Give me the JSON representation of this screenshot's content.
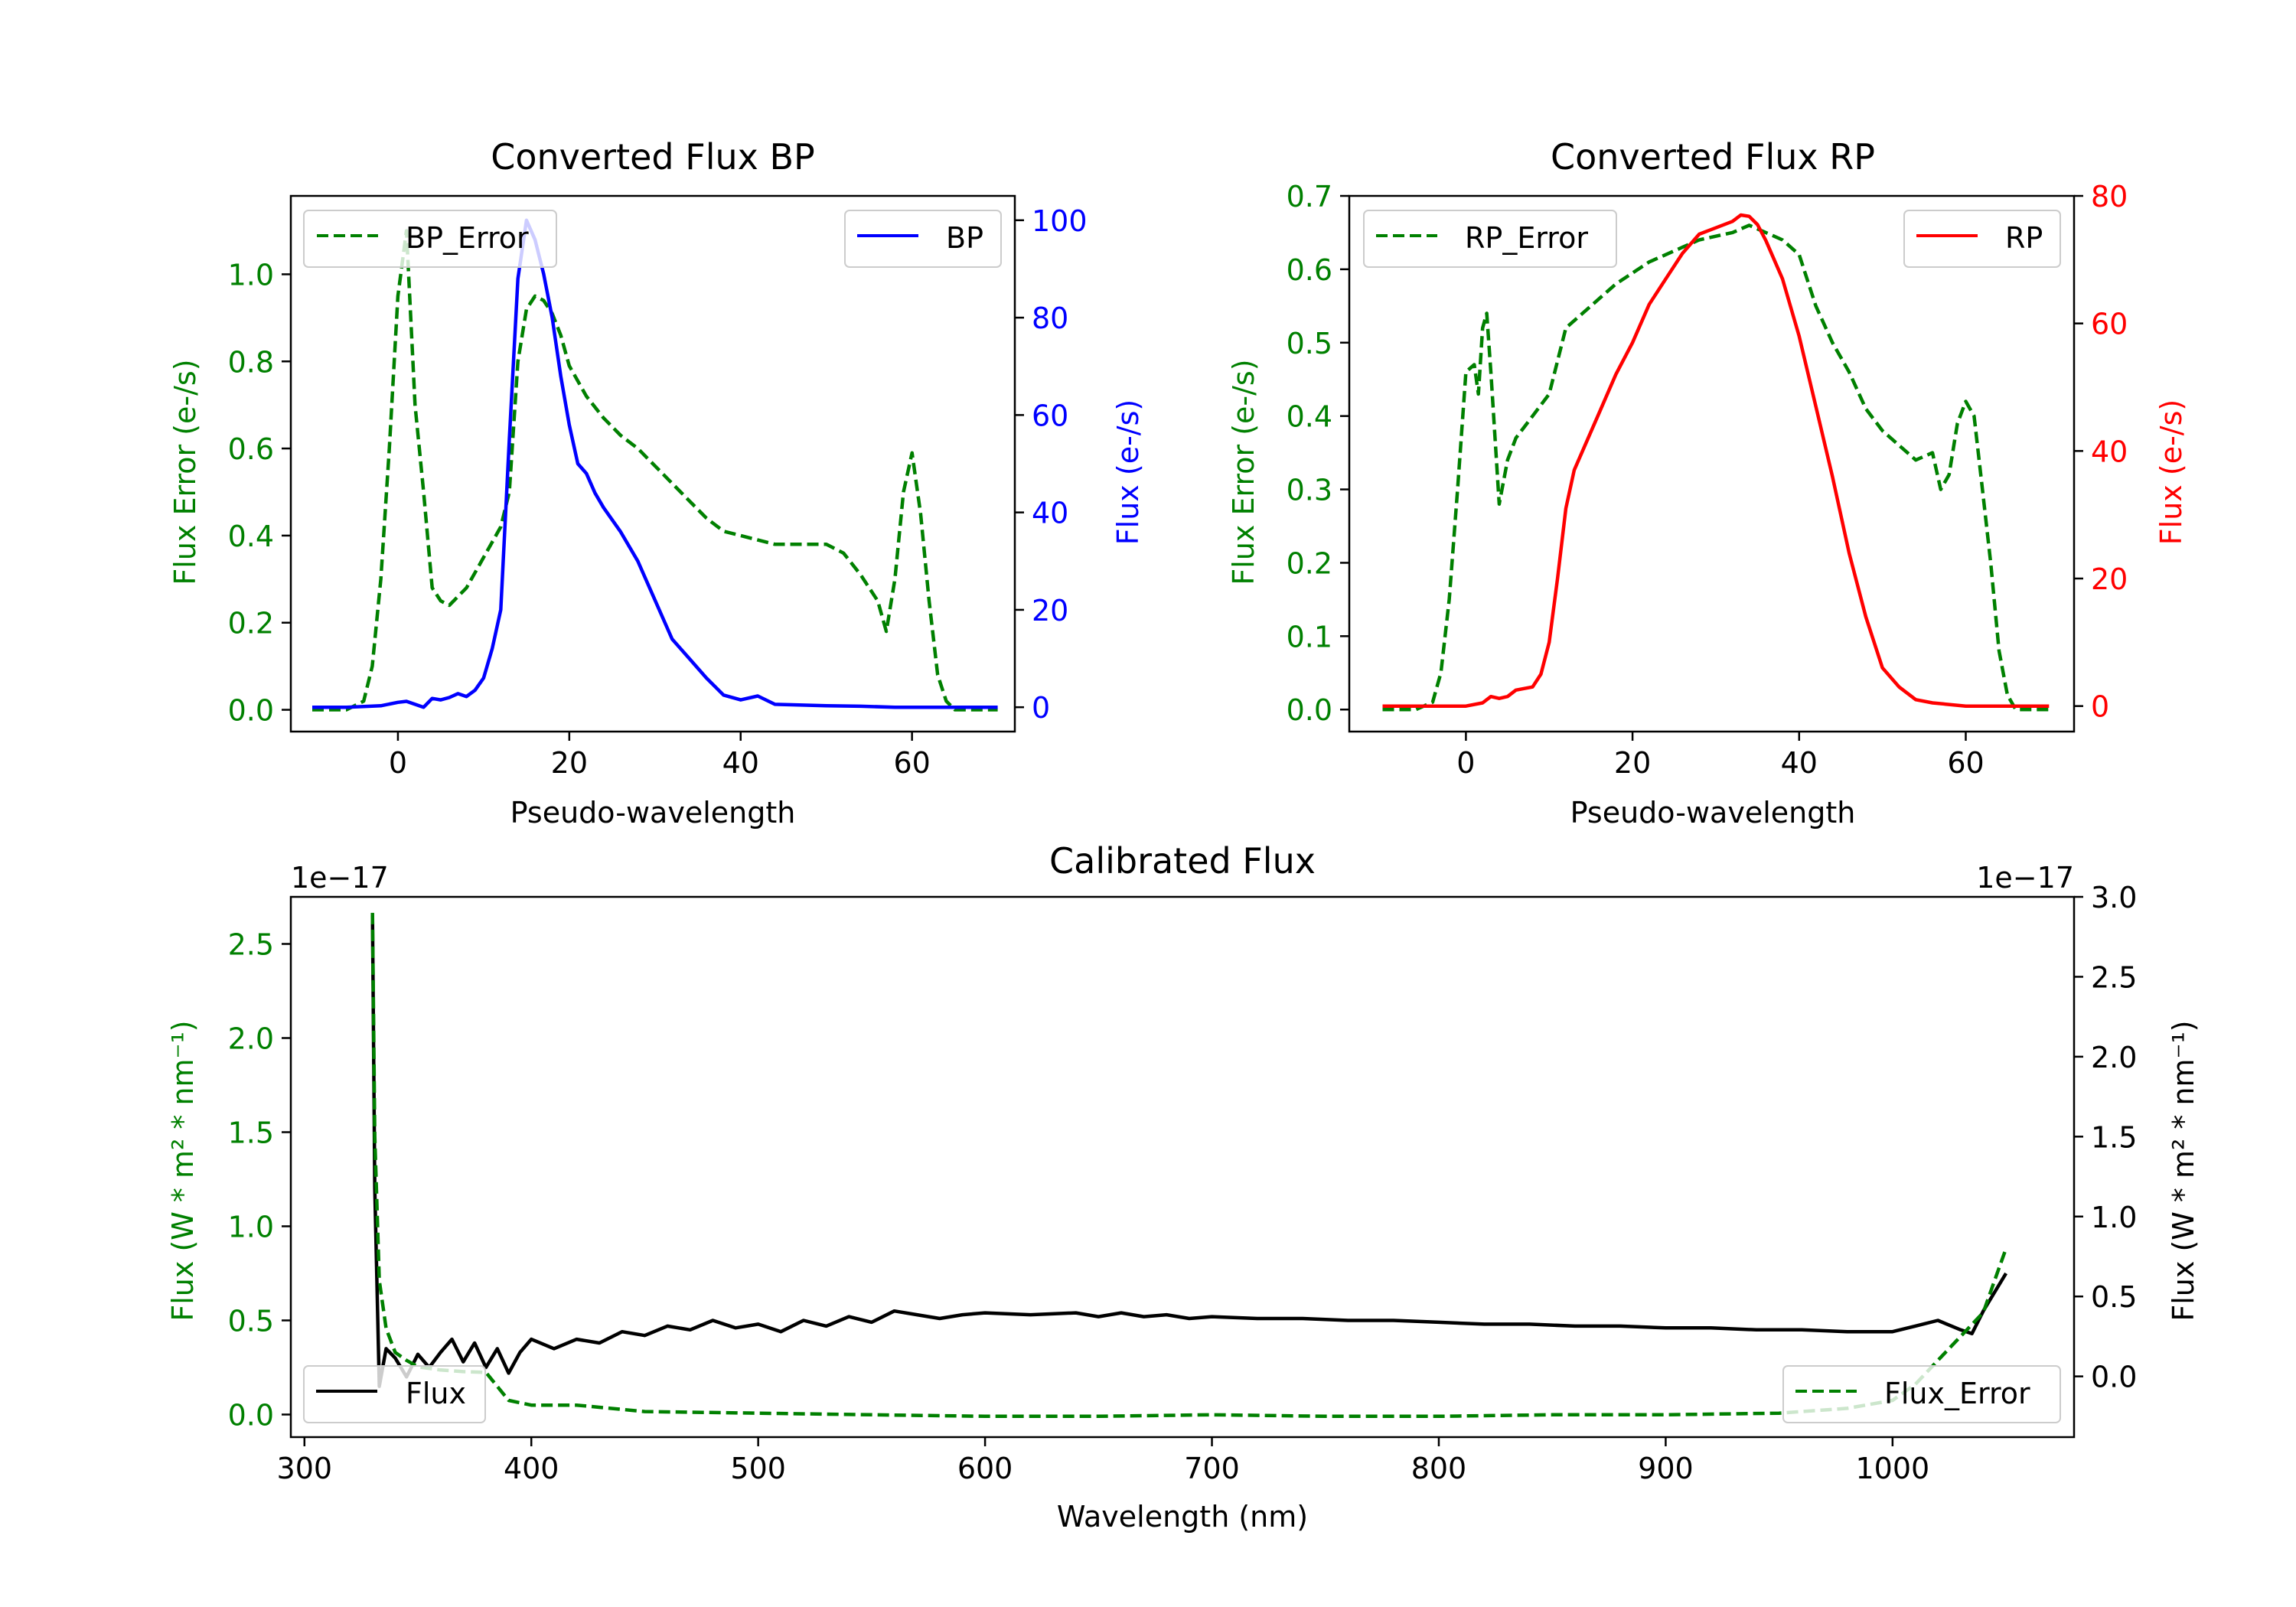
{
  "chart_data": [
    {
      "type": "line",
      "title": "Converted Flux BP",
      "xlabel": "Pseudo-wavelength",
      "xlim": [
        -12.5,
        72
      ],
      "xticks": [
        0,
        20,
        40,
        60
      ],
      "left_axis": {
        "label": "Flux Error (e-/s)",
        "color": "#008000",
        "ylim": [
          -0.05,
          1.18
        ],
        "ticks": [
          0.0,
          0.2,
          0.4,
          0.6,
          0.8,
          1.0
        ],
        "tick_labels": [
          "0.0",
          "0.2",
          "0.4",
          "0.6",
          "0.8",
          "1.0"
        ]
      },
      "right_axis": {
        "label": "Flux (e-/s)",
        "color": "#0000ff",
        "ylim": [
          -5,
          105
        ],
        "ticks": [
          0,
          20,
          40,
          60,
          80,
          100
        ],
        "tick_labels": [
          "0",
          "20",
          "40",
          "60",
          "80",
          "100"
        ]
      },
      "series": [
        {
          "name": "BP_Error",
          "axis": "left",
          "style": "dashed",
          "color": "#008000",
          "x": [
            -10,
            -6,
            -4,
            -3,
            -2,
            -1,
            0,
            1,
            2,
            3,
            4,
            5,
            6,
            8,
            10,
            12,
            13,
            14,
            15,
            16,
            17,
            18,
            19,
            20,
            22,
            24,
            26,
            28,
            30,
            32,
            34,
            36,
            38,
            40,
            42,
            44,
            46,
            48,
            50,
            52,
            54,
            55,
            56,
            57,
            58,
            59,
            60,
            61,
            62,
            63,
            64,
            65,
            66,
            68,
            70
          ],
          "values": [
            0,
            0,
            0.02,
            0.1,
            0.3,
            0.6,
            0.95,
            1.1,
            0.7,
            0.5,
            0.28,
            0.25,
            0.24,
            0.28,
            0.35,
            0.42,
            0.5,
            0.8,
            0.92,
            0.95,
            0.94,
            0.91,
            0.86,
            0.79,
            0.72,
            0.67,
            0.63,
            0.6,
            0.56,
            0.52,
            0.48,
            0.44,
            0.41,
            0.4,
            0.39,
            0.38,
            0.38,
            0.38,
            0.38,
            0.36,
            0.31,
            0.28,
            0.25,
            0.18,
            0.3,
            0.5,
            0.59,
            0.45,
            0.25,
            0.08,
            0.02,
            0,
            0,
            0,
            0
          ]
        },
        {
          "name": "BP",
          "axis": "right",
          "style": "solid",
          "color": "#0000ff",
          "x": [
            -10,
            -6,
            -2,
            0,
            1,
            2,
            3,
            4,
            5,
            6,
            7,
            8,
            9,
            10,
            11,
            12,
            13,
            14,
            15,
            16,
            17,
            18,
            19,
            20,
            21,
            22,
            23,
            24,
            26,
            28,
            30,
            32,
            34,
            36,
            38,
            40,
            42,
            44,
            46,
            50,
            54,
            58,
            62,
            66,
            70
          ],
          "values": [
            0,
            0,
            0.3,
            1,
            1.2,
            0.6,
            0,
            1.8,
            1.5,
            2,
            2.8,
            2.2,
            3.5,
            6,
            12,
            20,
            55,
            88,
            100,
            96,
            89,
            80,
            68,
            58,
            50,
            48,
            44,
            41,
            36,
            30,
            22,
            14,
            10,
            6,
            2.5,
            1.5,
            2.3,
            0.6,
            0.5,
            0.3,
            0.2,
            0,
            0,
            0,
            0
          ]
        }
      ],
      "legend": [
        {
          "label": "BP_Error",
          "position": "upper-left"
        },
        {
          "label": "BP",
          "position": "upper-right"
        }
      ]
    },
    {
      "type": "line",
      "title": "Converted Flux RP",
      "xlabel": "Pseudo-wavelength",
      "xlim": [
        -14,
        73
      ],
      "xticks": [
        0,
        20,
        40,
        60
      ],
      "left_axis": {
        "label": "Flux Error (e-/s)",
        "color": "#008000",
        "ylim": [
          -0.03,
          0.7
        ],
        "ticks": [
          0.0,
          0.1,
          0.2,
          0.3,
          0.4,
          0.5,
          0.6,
          0.7
        ],
        "tick_labels": [
          "0.0",
          "0.1",
          "0.2",
          "0.3",
          "0.4",
          "0.5",
          "0.6",
          "0.7"
        ]
      },
      "right_axis": {
        "label": "Flux (e-/s)",
        "color": "#ff0000",
        "ylim": [
          -4,
          80
        ],
        "ticks": [
          0,
          20,
          40,
          60,
          80
        ],
        "tick_labels": [
          "0",
          "20",
          "40",
          "60",
          "80"
        ]
      },
      "series": [
        {
          "name": "RP_Error",
          "axis": "left",
          "style": "dashed",
          "color": "#008000",
          "x": [
            -10,
            -6,
            -4,
            -3,
            -2,
            -1,
            0,
            1,
            1.5,
            2,
            2.5,
            3,
            4,
            5,
            6,
            8,
            10,
            12,
            14,
            18,
            22,
            26,
            28,
            30,
            32,
            34,
            36,
            38,
            40,
            42,
            44,
            46,
            48,
            50,
            52,
            54,
            56,
            57,
            58,
            59,
            60,
            61,
            62,
            63,
            64,
            65,
            66,
            68,
            70
          ],
          "values": [
            0,
            0,
            0.01,
            0.05,
            0.15,
            0.3,
            0.46,
            0.47,
            0.43,
            0.52,
            0.54,
            0.46,
            0.28,
            0.34,
            0.37,
            0.4,
            0.43,
            0.52,
            0.54,
            0.58,
            0.61,
            0.63,
            0.64,
            0.645,
            0.65,
            0.66,
            0.65,
            0.64,
            0.62,
            0.55,
            0.5,
            0.46,
            0.41,
            0.38,
            0.36,
            0.34,
            0.35,
            0.3,
            0.32,
            0.39,
            0.42,
            0.4,
            0.3,
            0.2,
            0.08,
            0.02,
            0,
            0,
            0
          ]
        },
        {
          "name": "RP",
          "axis": "right",
          "style": "solid",
          "color": "#ff0000",
          "x": [
            -10,
            -4,
            0,
            2,
            3,
            4,
            5,
            6,
            8,
            9,
            10,
            11,
            12,
            13,
            14,
            16,
            18,
            20,
            22,
            24,
            26,
            28,
            30,
            32,
            33,
            34,
            35,
            36,
            38,
            40,
            42,
            44,
            46,
            48,
            50,
            52,
            54,
            56,
            60,
            64,
            70
          ],
          "values": [
            0,
            0,
            0,
            0.5,
            1.5,
            1.2,
            1.5,
            2.5,
            3,
            5,
            10,
            20,
            31,
            37,
            40,
            46,
            52,
            57,
            63,
            67,
            71,
            74,
            75,
            76,
            77,
            76.8,
            75.5,
            73,
            67,
            58,
            47,
            36,
            24,
            14,
            6,
            3,
            1,
            0.5,
            0,
            0,
            0
          ]
        }
      ],
      "legend": [
        {
          "label": "RP_Error",
          "position": "upper-left"
        },
        {
          "label": "RP",
          "position": "upper-right"
        }
      ]
    },
    {
      "type": "line",
      "title": "Calibrated Flux",
      "xlabel": "Wavelength (nm)",
      "xlim": [
        294,
        1080
      ],
      "xticks": [
        300,
        400,
        500,
        600,
        700,
        800,
        900,
        1000
      ],
      "left_axis": {
        "label": "Flux (W * m² * nm⁻¹)",
        "color": "#008000",
        "ylim": [
          -0.12,
          2.75
        ],
        "offset_text": "1e−17",
        "ticks": [
          0.0,
          0.5,
          1.0,
          1.5,
          2.0,
          2.5
        ],
        "tick_labels": [
          "0.0",
          "0.5",
          "1.0",
          "1.5",
          "2.0",
          "2.5"
        ]
      },
      "right_axis": {
        "label": "Flux (W * m² * nm⁻¹)",
        "color": "#000000",
        "ylim": [
          -0.38,
          3.0
        ],
        "offset_text": "1e−17",
        "ticks": [
          0.0,
          0.5,
          1.0,
          1.5,
          2.0,
          2.5,
          3.0
        ],
        "tick_labels": [
          "0.0",
          "0.5",
          "1.0",
          "1.5",
          "2.0",
          "2.5",
          "3.0"
        ]
      },
      "series": [
        {
          "name": "Flux",
          "axis": "left",
          "style": "solid",
          "color": "#000000",
          "x": [
            330,
            331,
            333,
            336,
            340,
            345,
            350,
            355,
            360,
            365,
            370,
            375,
            380,
            385,
            390,
            395,
            400,
            410,
            420,
            430,
            440,
            450,
            460,
            470,
            480,
            490,
            500,
            510,
            520,
            530,
            540,
            550,
            560,
            570,
            580,
            590,
            600,
            620,
            640,
            650,
            660,
            670,
            680,
            690,
            700,
            720,
            740,
            760,
            780,
            800,
            820,
            840,
            860,
            880,
            900,
            920,
            940,
            960,
            980,
            1000,
            1010,
            1020,
            1030,
            1035,
            1040,
            1045,
            1050
          ],
          "values": [
            2.65,
            1.2,
            0.15,
            0.35,
            0.3,
            0.2,
            0.32,
            0.25,
            0.33,
            0.4,
            0.28,
            0.38,
            0.25,
            0.35,
            0.22,
            0.33,
            0.4,
            0.35,
            0.4,
            0.38,
            0.44,
            0.42,
            0.47,
            0.45,
            0.5,
            0.46,
            0.48,
            0.44,
            0.5,
            0.47,
            0.52,
            0.49,
            0.55,
            0.53,
            0.51,
            0.53,
            0.54,
            0.53,
            0.54,
            0.52,
            0.54,
            0.52,
            0.53,
            0.51,
            0.52,
            0.51,
            0.51,
            0.5,
            0.5,
            0.49,
            0.48,
            0.48,
            0.47,
            0.47,
            0.46,
            0.46,
            0.45,
            0.45,
            0.44,
            0.44,
            0.47,
            0.5,
            0.45,
            0.43,
            0.55,
            0.65,
            0.75
          ]
        },
        {
          "name": "Flux_Error",
          "axis": "right",
          "style": "dashed",
          "color": "#008000",
          "x": [
            330,
            331,
            333,
            336,
            340,
            345,
            350,
            360,
            370,
            380,
            390,
            400,
            420,
            450,
            500,
            550,
            600,
            650,
            700,
            750,
            800,
            850,
            900,
            950,
            980,
            1000,
            1010,
            1020,
            1030,
            1040,
            1045,
            1050
          ],
          "values": [
            2.9,
            1.5,
            0.6,
            0.3,
            0.15,
            0.1,
            0.06,
            0.04,
            0.03,
            0.025,
            -0.15,
            -0.18,
            -0.18,
            -0.22,
            -0.23,
            -0.24,
            -0.25,
            -0.25,
            -0.24,
            -0.25,
            -0.25,
            -0.24,
            -0.24,
            -0.23,
            -0.2,
            -0.15,
            -0.05,
            0.1,
            0.25,
            0.4,
            0.6,
            0.8
          ]
        }
      ],
      "legend": [
        {
          "label": "Flux",
          "position": "lower-left"
        },
        {
          "label": "Flux_Error",
          "position": "lower-right"
        }
      ]
    }
  ]
}
